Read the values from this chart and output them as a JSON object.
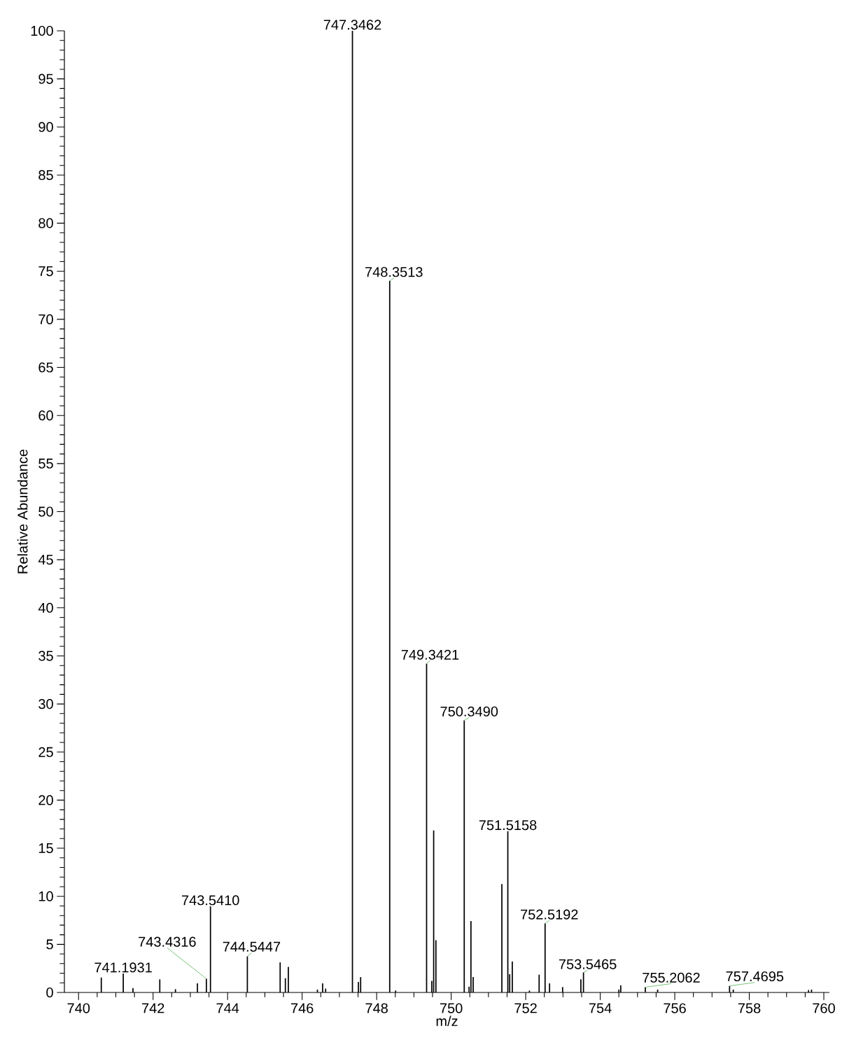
{
  "chart_data": {
    "type": "bar",
    "xlabel": "m/z",
    "ylabel": "Relative Abundance",
    "x": [
      740.61,
      741.2,
      741.46,
      742.18,
      742.6,
      743.19,
      743.43,
      743.54,
      744.53,
      745.41,
      745.55,
      745.63,
      746.41,
      746.55,
      746.63,
      747.35,
      747.51,
      747.57,
      748.35,
      748.51,
      749.34,
      749.48,
      749.53,
      749.59,
      750.35,
      750.48,
      750.53,
      750.59,
      751.36,
      751.52,
      751.57,
      751.64,
      752.1,
      752.36,
      752.52,
      752.64,
      752.99,
      753.48,
      753.55,
      754.5,
      754.55,
      755.21,
      755.36,
      755.54,
      757.47,
      757.57,
      759.59,
      759.67
    ],
    "values": [
      1.55,
      1.97,
      0.46,
      1.36,
      0.34,
      0.95,
      1.43,
      8.96,
      3.76,
      3.13,
      1.48,
      2.65,
      0.3,
      0.95,
      0.4,
      100,
      1.1,
      1.6,
      74,
      0.2,
      34.2,
      1.2,
      16.85,
      5.44,
      28.3,
      0.6,
      7.43,
      1.6,
      11.27,
      16.77,
      1.9,
      3.23,
      0.2,
      1.85,
      7.19,
      0.95,
      0.56,
      1.36,
      2.09,
      0.3,
      0.75,
      0.55,
      null,
      0.3,
      0.68,
      0.3,
      0.25,
      0.3
    ],
    "color": "#000000",
    "xlim": [
      739.62,
      760.15
    ],
    "ylim": [
      0,
      100
    ],
    "xticks": [
      740,
      742,
      744,
      746,
      748,
      750,
      752,
      754,
      756,
      758,
      760
    ],
    "yticks": [
      0,
      5,
      10,
      15,
      20,
      25,
      30,
      35,
      40,
      45,
      50,
      55,
      60,
      65,
      70,
      75,
      80,
      85,
      90,
      95,
      100
    ],
    "annotations": [
      {
        "text": "741.1931",
        "x": 741.2,
        "y": 1.97
      },
      {
        "text": "743.4316",
        "x": 743.43,
        "y": 1.43
      },
      {
        "text": "743.5410",
        "x": 743.54,
        "y": 8.96
      },
      {
        "text": "744.5447",
        "x": 744.53,
        "y": 3.76
      },
      {
        "text": "747.3462",
        "x": 747.35,
        "y": 100
      },
      {
        "text": "748.3513",
        "x": 748.35,
        "y": 74
      },
      {
        "text": "749.3421",
        "x": 749.34,
        "y": 34.2
      },
      {
        "text": "750.3490",
        "x": 750.35,
        "y": 28.3
      },
      {
        "text": "751.5158",
        "x": 751.52,
        "y": 16.77
      },
      {
        "text": "752.5192",
        "x": 752.52,
        "y": 7.19
      },
      {
        "text": "753.5465",
        "x": 753.55,
        "y": 2.09
      },
      {
        "text": "755.2062",
        "x": 755.21,
        "y": 0.55
      },
      {
        "text": "757.4695",
        "x": 757.47,
        "y": 0.68
      }
    ]
  }
}
